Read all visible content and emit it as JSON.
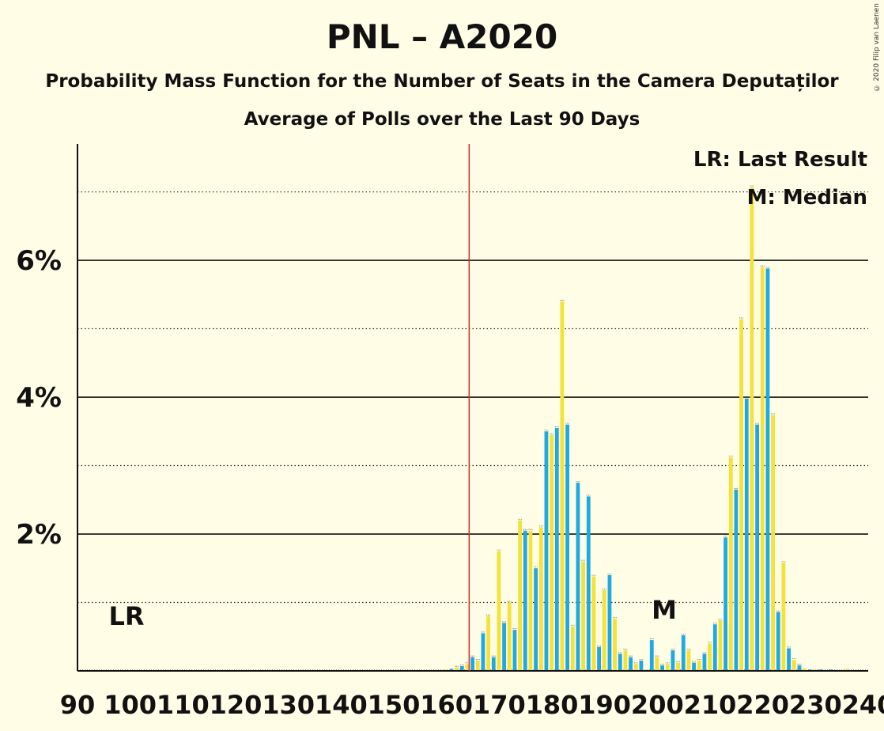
{
  "chart_data": {
    "type": "bar",
    "title": "PNL – A2020",
    "subtitle": "Probability Mass Function for the Number of Seats in the Camera Deputaților",
    "subtitle2": "Average of Polls over the Last 90 Days",
    "copyright": "© 2020 Filip van Laenen",
    "x_ticks": [
      90,
      100,
      110,
      120,
      130,
      140,
      150,
      160,
      170,
      180,
      190,
      200,
      210,
      220,
      230,
      240
    ],
    "xlim": [
      90,
      240
    ],
    "ylim": [
      0,
      7.7
    ],
    "y_ticks": [
      {
        "value": 2,
        "label": "2%"
      },
      {
        "value": 4,
        "label": "4%"
      },
      {
        "value": 6,
        "label": "6%"
      }
    ],
    "minor_gridlines": [
      1,
      3,
      5,
      7
    ],
    "last_result": 165,
    "last_result_label": "LR",
    "median": 201,
    "median_label": "M",
    "legend": {
      "last_result": "LR: Last Result",
      "median": "M: Median"
    },
    "colors": {
      "blue": "#1ea9e1",
      "yellow": "#f5e13b",
      "last_result_line": "#e0212b",
      "background": "#fffde6"
    },
    "series": {
      "seats": [
        160,
        161,
        162,
        163,
        164,
        165,
        166,
        167,
        168,
        169,
        170,
        171,
        172,
        173,
        174,
        175,
        176,
        177,
        178,
        179,
        180,
        181,
        182,
        183,
        184,
        185,
        186,
        187,
        188,
        189,
        190,
        191,
        192,
        193,
        194,
        195,
        196,
        197,
        198,
        199,
        200,
        201,
        202,
        203,
        204,
        205,
        206,
        207,
        208,
        209,
        210,
        211,
        212,
        213,
        214,
        215,
        216,
        217,
        218,
        219,
        220,
        221,
        222,
        223,
        224,
        225,
        226,
        227,
        228,
        229,
        230,
        231,
        232,
        233,
        234,
        235,
        236,
        237,
        238,
        239
      ],
      "probability": [
        0.02,
        0.03,
        0.05,
        0.07,
        0.1,
        0.2,
        0.15,
        0.55,
        0.8,
        0.2,
        1.75,
        0.7,
        1.0,
        0.6,
        2.2,
        2.05,
        2.05,
        1.5,
        2.1,
        3.5,
        3.45,
        3.55,
        5.4,
        3.6,
        0.65,
        2.75,
        1.6,
        2.55,
        1.38,
        0.35,
        1.18,
        1.4,
        0.76,
        0.25,
        0.3,
        0.2,
        0.1,
        0.15,
        0.02,
        0.45,
        0.2,
        0.08,
        0.1,
        0.3,
        0.12,
        0.52,
        0.3,
        0.12,
        0.15,
        0.25,
        0.4,
        0.68,
        0.74,
        1.95,
        3.12,
        2.65,
        5.14,
        3.98,
        7.07,
        3.6,
        5.9,
        5.88,
        3.74,
        0.86,
        1.58,
        0.33,
        0.16,
        0.08,
        0.04,
        0.02,
        0.02,
        0.02,
        0.01,
        0.02,
        0.01,
        0.01,
        0.03,
        0.01,
        0.01,
        0.01
      ]
    }
  }
}
